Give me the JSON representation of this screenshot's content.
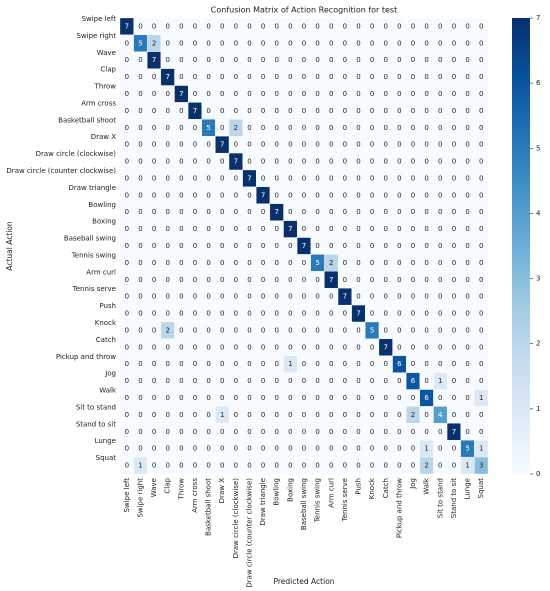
{
  "chart_data": {
    "type": "heatmap",
    "title": "Confusion Matrix of Action Recognition for test",
    "x_label": "Predicted Action",
    "y_label": "Actual Action",
    "x_categories": [
      "Swipe left",
      "Swipe right",
      "Wave",
      "Clap",
      "Throw",
      "Arm cross",
      "Basketball shoot",
      "Draw X",
      "Draw circle (clockwise)",
      "Draw circle (counter clockwise)",
      "Draw triangle",
      "Bowling",
      "Boxing",
      "Baseball swing",
      "Tennis swing",
      "Arm curl",
      "Tennis serve",
      "Push",
      "Knock",
      "Catch",
      "Pickup and throw",
      "Jog",
      "Walk",
      "Sit to stand",
      "Stand to sit",
      "Lunge",
      "Squat"
    ],
    "y_categories": [
      "Swipe left",
      "Swipe right",
      "Wave",
      "Clap",
      "Throw",
      "Arm cross",
      "Basketball shoot",
      "Draw X",
      "Draw circle (clockwise)",
      "Draw circle (counter clockwise)",
      "Draw triangle",
      "Bowling",
      "Boxing",
      "Baseball swing",
      "Tennis swing",
      "Arm curl",
      "Tennis serve",
      "Push",
      "Knock",
      "Catch",
      "Pickup and throw",
      "Jog",
      "Walk",
      "Sit to stand",
      "Stand to sit",
      "Lunge",
      "Squat"
    ],
    "values": [
      [
        7,
        0,
        0,
        0,
        0,
        0,
        0,
        0,
        0,
        0,
        0,
        0,
        0,
        0,
        0,
        0,
        0,
        0,
        0,
        0,
        0,
        0,
        0,
        0,
        0,
        0,
        0
      ],
      [
        0,
        5,
        2,
        0,
        0,
        0,
        0,
        0,
        0,
        0,
        0,
        0,
        0,
        0,
        0,
        0,
        0,
        0,
        0,
        0,
        0,
        0,
        0,
        0,
        0,
        0,
        0
      ],
      [
        0,
        0,
        7,
        0,
        0,
        0,
        0,
        0,
        0,
        0,
        0,
        0,
        0,
        0,
        0,
        0,
        0,
        0,
        0,
        0,
        0,
        0,
        0,
        0,
        0,
        0,
        0
      ],
      [
        0,
        0,
        0,
        7,
        0,
        0,
        0,
        0,
        0,
        0,
        0,
        0,
        0,
        0,
        0,
        0,
        0,
        0,
        0,
        0,
        0,
        0,
        0,
        0,
        0,
        0,
        0
      ],
      [
        0,
        0,
        0,
        0,
        7,
        0,
        0,
        0,
        0,
        0,
        0,
        0,
        0,
        0,
        0,
        0,
        0,
        0,
        0,
        0,
        0,
        0,
        0,
        0,
        0,
        0,
        0
      ],
      [
        0,
        0,
        0,
        0,
        0,
        7,
        0,
        0,
        0,
        0,
        0,
        0,
        0,
        0,
        0,
        0,
        0,
        0,
        0,
        0,
        0,
        0,
        0,
        0,
        0,
        0,
        0
      ],
      [
        0,
        0,
        0,
        0,
        0,
        0,
        5,
        0,
        2,
        0,
        0,
        0,
        0,
        0,
        0,
        0,
        0,
        0,
        0,
        0,
        0,
        0,
        0,
        0,
        0,
        0,
        0
      ],
      [
        0,
        0,
        0,
        0,
        0,
        0,
        0,
        7,
        0,
        0,
        0,
        0,
        0,
        0,
        0,
        0,
        0,
        0,
        0,
        0,
        0,
        0,
        0,
        0,
        0,
        0,
        0
      ],
      [
        0,
        0,
        0,
        0,
        0,
        0,
        0,
        0,
        7,
        0,
        0,
        0,
        0,
        0,
        0,
        0,
        0,
        0,
        0,
        0,
        0,
        0,
        0,
        0,
        0,
        0,
        0
      ],
      [
        0,
        0,
        0,
        0,
        0,
        0,
        0,
        0,
        0,
        7,
        0,
        0,
        0,
        0,
        0,
        0,
        0,
        0,
        0,
        0,
        0,
        0,
        0,
        0,
        0,
        0,
        0
      ],
      [
        0,
        0,
        0,
        0,
        0,
        0,
        0,
        0,
        0,
        0,
        7,
        0,
        0,
        0,
        0,
        0,
        0,
        0,
        0,
        0,
        0,
        0,
        0,
        0,
        0,
        0,
        0
      ],
      [
        0,
        0,
        0,
        0,
        0,
        0,
        0,
        0,
        0,
        0,
        0,
        7,
        0,
        0,
        0,
        0,
        0,
        0,
        0,
        0,
        0,
        0,
        0,
        0,
        0,
        0,
        0
      ],
      [
        0,
        0,
        0,
        0,
        0,
        0,
        0,
        0,
        0,
        0,
        0,
        0,
        7,
        0,
        0,
        0,
        0,
        0,
        0,
        0,
        0,
        0,
        0,
        0,
        0,
        0,
        0
      ],
      [
        0,
        0,
        0,
        0,
        0,
        0,
        0,
        0,
        0,
        0,
        0,
        0,
        0,
        7,
        0,
        0,
        0,
        0,
        0,
        0,
        0,
        0,
        0,
        0,
        0,
        0,
        0
      ],
      [
        0,
        0,
        0,
        0,
        0,
        0,
        0,
        0,
        0,
        0,
        0,
        0,
        0,
        0,
        5,
        2,
        0,
        0,
        0,
        0,
        0,
        0,
        0,
        0,
        0,
        0,
        0
      ],
      [
        0,
        0,
        0,
        0,
        0,
        0,
        0,
        0,
        0,
        0,
        0,
        0,
        0,
        0,
        0,
        7,
        0,
        0,
        0,
        0,
        0,
        0,
        0,
        0,
        0,
        0,
        0
      ],
      [
        0,
        0,
        0,
        0,
        0,
        0,
        0,
        0,
        0,
        0,
        0,
        0,
        0,
        0,
        0,
        0,
        7,
        0,
        0,
        0,
        0,
        0,
        0,
        0,
        0,
        0,
        0
      ],
      [
        0,
        0,
        0,
        0,
        0,
        0,
        0,
        0,
        0,
        0,
        0,
        0,
        0,
        0,
        0,
        0,
        0,
        7,
        0,
        0,
        0,
        0,
        0,
        0,
        0,
        0,
        0
      ],
      [
        0,
        0,
        0,
        2,
        0,
        0,
        0,
        0,
        0,
        0,
        0,
        0,
        0,
        0,
        0,
        0,
        0,
        0,
        5,
        0,
        0,
        0,
        0,
        0,
        0,
        0,
        0
      ],
      [
        0,
        0,
        0,
        0,
        0,
        0,
        0,
        0,
        0,
        0,
        0,
        0,
        0,
        0,
        0,
        0,
        0,
        0,
        0,
        7,
        0,
        0,
        0,
        0,
        0,
        0,
        0
      ],
      [
        0,
        0,
        0,
        0,
        0,
        0,
        0,
        0,
        0,
        0,
        0,
        0,
        1,
        0,
        0,
        0,
        0,
        0,
        0,
        0,
        6,
        0,
        0,
        0,
        0,
        0,
        0
      ],
      [
        0,
        0,
        0,
        0,
        0,
        0,
        0,
        0,
        0,
        0,
        0,
        0,
        0,
        0,
        0,
        0,
        0,
        0,
        0,
        0,
        0,
        6,
        0,
        1,
        0,
        0,
        0
      ],
      [
        0,
        0,
        0,
        0,
        0,
        0,
        0,
        0,
        0,
        0,
        0,
        0,
        0,
        0,
        0,
        0,
        0,
        0,
        0,
        0,
        0,
        0,
        6,
        0,
        0,
        0,
        1
      ],
      [
        0,
        0,
        0,
        0,
        0,
        0,
        0,
        1,
        0,
        0,
        0,
        0,
        0,
        0,
        0,
        0,
        0,
        0,
        0,
        0,
        0,
        2,
        0,
        4,
        0,
        0,
        0
      ],
      [
        0,
        0,
        0,
        0,
        0,
        0,
        0,
        0,
        0,
        0,
        0,
        0,
        0,
        0,
        0,
        0,
        0,
        0,
        0,
        0,
        0,
        0,
        0,
        0,
        7,
        0,
        0
      ],
      [
        0,
        0,
        0,
        0,
        0,
        0,
        0,
        0,
        0,
        0,
        0,
        0,
        0,
        0,
        0,
        0,
        0,
        0,
        0,
        0,
        0,
        0,
        1,
        0,
        0,
        5,
        1
      ],
      [
        0,
        1,
        0,
        0,
        0,
        0,
        0,
        0,
        0,
        0,
        0,
        0,
        0,
        0,
        0,
        0,
        0,
        0,
        0,
        0,
        0,
        0,
        2,
        0,
        0,
        1,
        3
      ]
    ],
    "colormap": "Blues",
    "clim": [
      0,
      7
    ],
    "cticks": [
      0,
      1,
      2,
      3,
      4,
      5,
      6,
      7
    ]
  }
}
